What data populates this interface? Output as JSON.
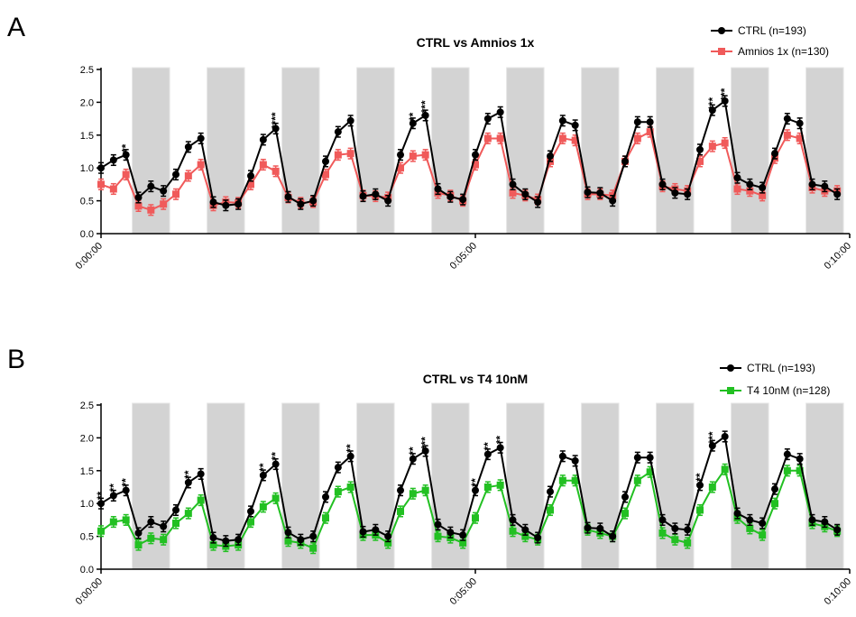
{
  "chart_data": [
    {
      "panel": "A",
      "type": "line",
      "title": "CTRL vs Amnios 1x",
      "xlabel": "",
      "ylabel": "",
      "ylim": [
        0,
        2.5
      ],
      "yticks": [
        "0.0",
        "0.5",
        "1.0",
        "1.5",
        "2.0",
        "2.5"
      ],
      "xticks": [
        "0:00:00",
        "0:05:00",
        "0:10:00"
      ],
      "xtick_positions": [
        0,
        30,
        60
      ],
      "shaded_intervals": [
        [
          2.5,
          5.5
        ],
        [
          8.5,
          11.5
        ],
        [
          14.5,
          17.5
        ],
        [
          20.5,
          23.5
        ],
        [
          26.5,
          29.5
        ],
        [
          32.5,
          35.5
        ],
        [
          38.5,
          41.5
        ],
        [
          44.5,
          47.5
        ],
        [
          50.5,
          53.5
        ],
        [
          56.5,
          59.5
        ]
      ],
      "x": [
        0,
        1,
        2,
        3,
        4,
        5,
        6,
        7,
        8,
        9,
        10,
        11,
        12,
        13,
        14,
        15,
        16,
        17,
        18,
        19,
        20,
        21,
        22,
        23,
        24,
        25,
        26,
        27,
        28,
        29,
        30,
        31,
        32,
        33,
        34,
        35,
        36,
        37,
        38,
        39,
        40,
        41,
        42,
        43,
        44,
        45,
        46,
        47,
        48,
        49,
        50,
        51,
        52,
        53,
        54,
        55,
        56,
        57,
        58,
        59,
        60
      ],
      "series": [
        {
          "name": "CTRL (n=193)",
          "color": "#000000",
          "marker": "circle",
          "values": [
            1.0,
            1.12,
            1.2,
            0.55,
            0.72,
            0.65,
            0.9,
            1.32,
            1.45,
            0.48,
            0.43,
            0.45,
            0.88,
            1.43,
            1.6,
            0.56,
            0.45,
            0.5,
            1.1,
            1.55,
            1.72,
            0.57,
            0.6,
            0.5,
            1.2,
            1.68,
            1.8,
            0.68,
            0.56,
            0.52,
            1.2,
            1.75,
            1.85,
            0.75,
            0.6,
            0.48,
            1.18,
            1.72,
            1.65,
            0.63,
            0.62,
            0.5,
            1.1,
            1.7,
            1.7,
            0.75,
            0.62,
            0.6,
            1.28,
            1.88,
            2.02,
            0.85,
            0.75,
            0.7,
            1.22,
            1.75,
            1.68,
            0.75,
            0.72,
            0.6,
            null
          ]
        },
        {
          "name": "Amnios 1x (n=130)",
          "color": "#f05a5a",
          "marker": "square",
          "values": [
            0.75,
            0.68,
            0.9,
            0.42,
            0.36,
            0.45,
            0.6,
            0.88,
            1.05,
            0.43,
            0.48,
            0.47,
            0.75,
            1.05,
            0.95,
            0.55,
            0.47,
            0.48,
            0.9,
            1.2,
            1.22,
            0.58,
            0.57,
            0.55,
            1.0,
            1.18,
            1.2,
            0.62,
            0.58,
            0.5,
            1.05,
            1.45,
            1.45,
            0.62,
            0.58,
            0.52,
            1.1,
            1.45,
            1.42,
            0.6,
            0.6,
            0.58,
            1.1,
            1.45,
            1.55,
            0.72,
            0.68,
            0.65,
            1.1,
            1.33,
            1.38,
            0.68,
            0.65,
            0.58,
            1.15,
            1.5,
            1.45,
            0.7,
            0.65,
            0.65,
            null
          ]
        }
      ],
      "annotations": [
        {
          "x": 2,
          "y": 1.3,
          "text": "**"
        },
        {
          "x": 14,
          "y": 1.72,
          "text": "****"
        },
        {
          "x": 25,
          "y": 1.78,
          "text": "**"
        },
        {
          "x": 26,
          "y": 1.9,
          "text": "****"
        },
        {
          "x": 49,
          "y": 1.98,
          "text": "***"
        },
        {
          "x": 50,
          "y": 2.12,
          "text": "***"
        }
      ],
      "legend": "top-right"
    },
    {
      "panel": "B",
      "type": "line",
      "title": "CTRL vs T4 10nM",
      "xlabel": "",
      "ylabel": "",
      "ylim": [
        0,
        2.5
      ],
      "yticks": [
        "0.0",
        "0.5",
        "1.0",
        "1.5",
        "2.0",
        "2.5"
      ],
      "xticks": [
        "0:00:00",
        "0:05:00",
        "0:10:00"
      ],
      "xtick_positions": [
        0,
        30,
        60
      ],
      "shaded_intervals": [
        [
          2.5,
          5.5
        ],
        [
          8.5,
          11.5
        ],
        [
          14.5,
          17.5
        ],
        [
          20.5,
          23.5
        ],
        [
          26.5,
          29.5
        ],
        [
          32.5,
          35.5
        ],
        [
          38.5,
          41.5
        ],
        [
          44.5,
          47.5
        ],
        [
          50.5,
          53.5
        ],
        [
          56.5,
          59.5
        ]
      ],
      "x": [
        0,
        1,
        2,
        3,
        4,
        5,
        6,
        7,
        8,
        9,
        10,
        11,
        12,
        13,
        14,
        15,
        16,
        17,
        18,
        19,
        20,
        21,
        22,
        23,
        24,
        25,
        26,
        27,
        28,
        29,
        30,
        31,
        32,
        33,
        34,
        35,
        36,
        37,
        38,
        39,
        40,
        41,
        42,
        43,
        44,
        45,
        46,
        47,
        48,
        49,
        50,
        51,
        52,
        53,
        54,
        55,
        56,
        57,
        58,
        59,
        60
      ],
      "series": [
        {
          "name": "CTRL (n=193)",
          "color": "#000000",
          "marker": "circle",
          "values": [
            1.0,
            1.12,
            1.2,
            0.55,
            0.72,
            0.65,
            0.9,
            1.32,
            1.45,
            0.48,
            0.43,
            0.45,
            0.88,
            1.43,
            1.6,
            0.56,
            0.45,
            0.5,
            1.1,
            1.55,
            1.72,
            0.57,
            0.6,
            0.5,
            1.2,
            1.68,
            1.8,
            0.68,
            0.56,
            0.52,
            1.2,
            1.75,
            1.85,
            0.75,
            0.6,
            0.48,
            1.18,
            1.72,
            1.65,
            0.63,
            0.62,
            0.5,
            1.1,
            1.7,
            1.7,
            0.75,
            0.62,
            0.6,
            1.28,
            1.88,
            2.02,
            0.85,
            0.75,
            0.7,
            1.22,
            1.75,
            1.68,
            0.75,
            0.72,
            0.6,
            null
          ]
        },
        {
          "name": "T4 10nM (n=128)",
          "color": "#22c022",
          "marker": "square",
          "values": [
            0.58,
            0.72,
            0.75,
            0.37,
            0.47,
            0.45,
            0.7,
            0.85,
            1.05,
            0.37,
            0.35,
            0.37,
            0.72,
            0.95,
            1.08,
            0.43,
            0.4,
            0.32,
            0.78,
            1.18,
            1.25,
            0.52,
            0.52,
            0.4,
            0.88,
            1.15,
            1.2,
            0.5,
            0.48,
            0.4,
            0.78,
            1.25,
            1.28,
            0.58,
            0.5,
            0.45,
            0.9,
            1.35,
            1.35,
            0.6,
            0.55,
            0.5,
            0.85,
            1.35,
            1.48,
            0.55,
            0.45,
            0.4,
            0.9,
            1.25,
            1.52,
            0.78,
            0.62,
            0.52,
            1.0,
            1.5,
            1.5,
            0.7,
            0.65,
            0.58,
            null
          ]
        }
      ],
      "annotations": [
        {
          "x": 0,
          "y": 1.12,
          "text": "**"
        },
        {
          "x": 1,
          "y": 1.24,
          "text": "**"
        },
        {
          "x": 2,
          "y": 1.32,
          "text": "**"
        },
        {
          "x": 7,
          "y": 1.44,
          "text": "**"
        },
        {
          "x": 13,
          "y": 1.55,
          "text": "**"
        },
        {
          "x": 14,
          "y": 1.72,
          "text": "**"
        },
        {
          "x": 20,
          "y": 1.84,
          "text": "**"
        },
        {
          "x": 25,
          "y": 1.8,
          "text": "**"
        },
        {
          "x": 26,
          "y": 1.92,
          "text": "***"
        },
        {
          "x": 30,
          "y": 1.32,
          "text": "**"
        },
        {
          "x": 31,
          "y": 1.87,
          "text": "**"
        },
        {
          "x": 32,
          "y": 1.97,
          "text": "**"
        },
        {
          "x": 48,
          "y": 1.4,
          "text": "**"
        },
        {
          "x": 49,
          "y": 2.0,
          "text": "***"
        }
      ],
      "legend": "top-right"
    }
  ]
}
